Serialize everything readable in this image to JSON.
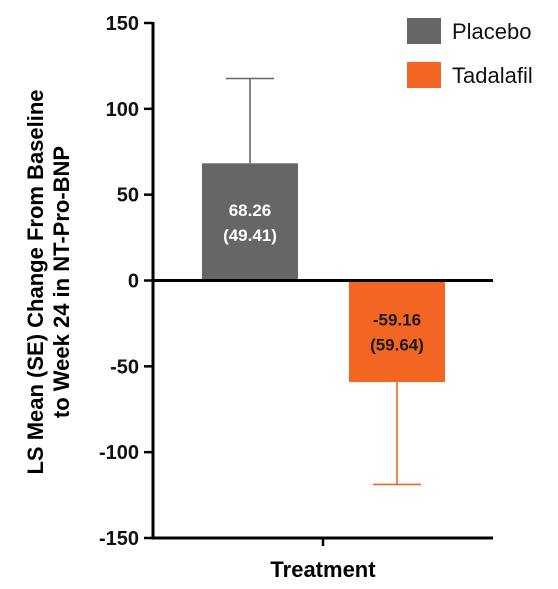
{
  "chart_data": {
    "type": "bar",
    "categories": [
      "Placebo",
      "Tadalafil"
    ],
    "series": [
      {
        "name": "Placebo",
        "value": 68.26,
        "se": 49.41,
        "label_lines": [
          "68.26",
          "(49.41)"
        ],
        "color": "#666666",
        "label_color": "#ffffff"
      },
      {
        "name": "Tadalafil",
        "value": -59.16,
        "se": 59.64,
        "label_lines": [
          "-59.16",
          "(59.64)"
        ],
        "color": "#f26522",
        "label_color": "#1a1a1a"
      }
    ],
    "title": "",
    "xlabel": "Treatment",
    "ylabel_lines": [
      "LS Mean (SE) Change From Baseline",
      "to Week 24 in NT-Pro-BNP"
    ],
    "ylim": [
      -150,
      150
    ],
    "yticks": [
      150,
      100,
      50,
      0,
      -50,
      -100,
      -150
    ],
    "ytick_labels": [
      "150",
      "100",
      "50",
      "0",
      "-50",
      "-100",
      "-150"
    ],
    "grid": false,
    "legend_position": "top-right"
  }
}
